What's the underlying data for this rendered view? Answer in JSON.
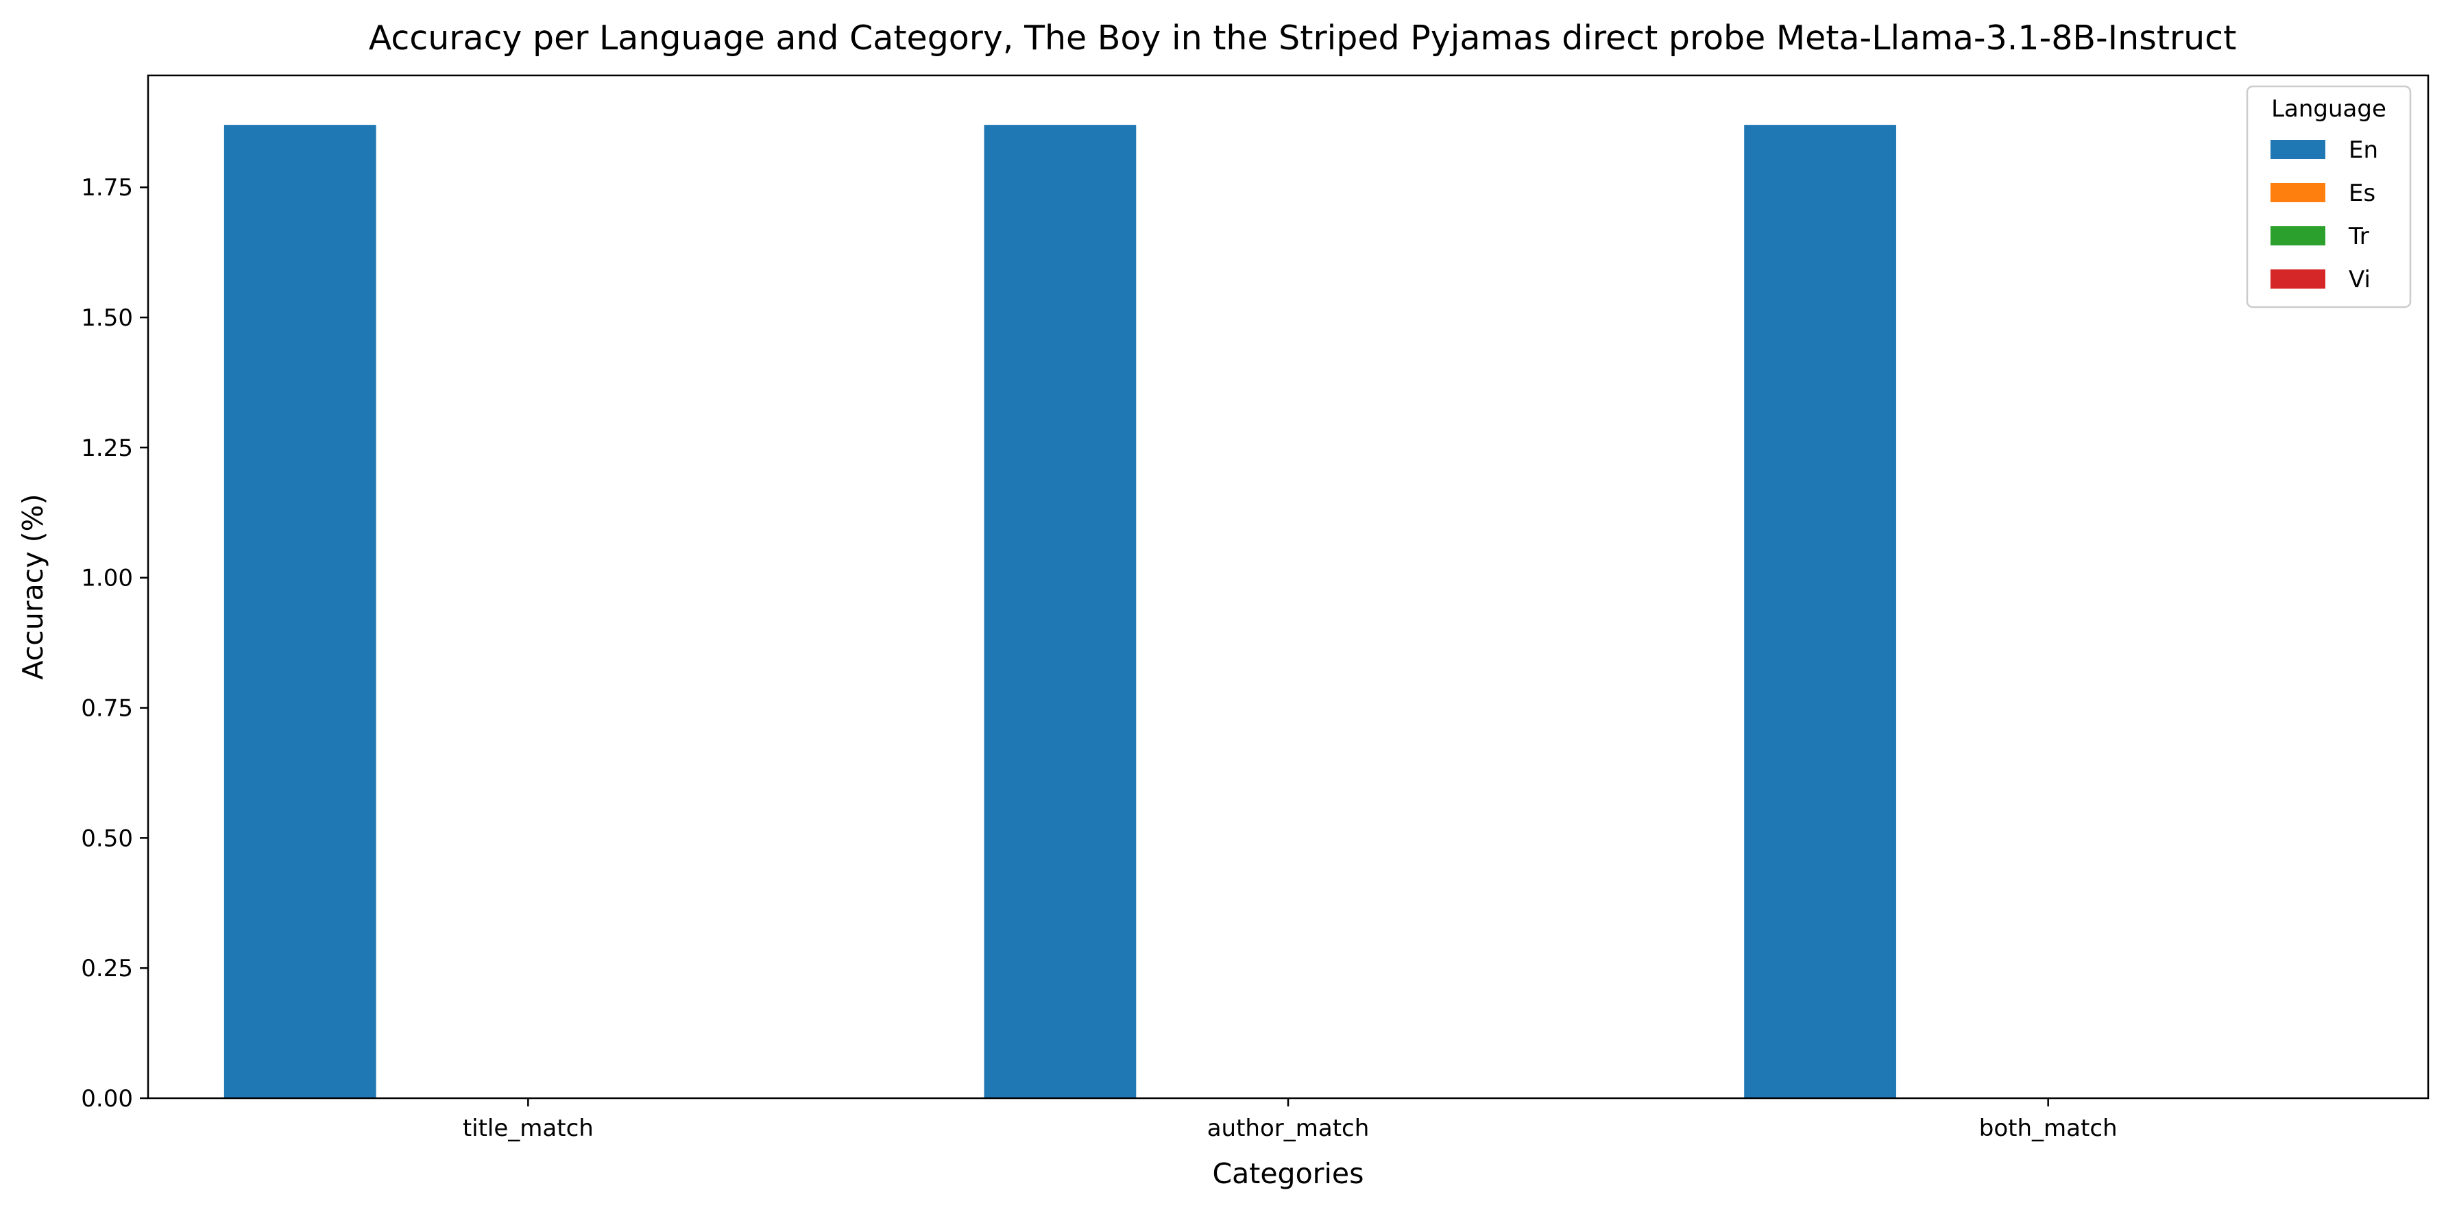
{
  "chart_data": {
    "type": "bar",
    "title": "Accuracy per Language and Category, The Boy in the Striped Pyjamas direct probe Meta-Llama-3.1-8B-Instruct",
    "xlabel": "Categories",
    "ylabel": "Accuracy (%)",
    "categories": [
      "title_match",
      "author_match",
      "both_match"
    ],
    "ylim": [
      0,
      1.965
    ],
    "yticks": [
      "0.00",
      "0.25",
      "0.50",
      "0.75",
      "1.00",
      "1.25",
      "1.50",
      "1.75"
    ],
    "ytick_values": [
      0,
      0.25,
      0.5,
      0.75,
      1.0,
      1.25,
      1.5,
      1.75
    ],
    "grid": false,
    "legend": {
      "title": "Language",
      "placement": "top-right"
    },
    "series": [
      {
        "name": "En",
        "color": "#1f77b4",
        "values": [
          1.87,
          1.87,
          1.87
        ]
      },
      {
        "name": "Es",
        "color": "#ff7f0e",
        "values": [
          0,
          0,
          0
        ]
      },
      {
        "name": "Tr",
        "color": "#2ca02c",
        "values": [
          0,
          0,
          0
        ]
      },
      {
        "name": "Vi",
        "color": "#d62728",
        "values": [
          0,
          0,
          0
        ]
      }
    ]
  }
}
